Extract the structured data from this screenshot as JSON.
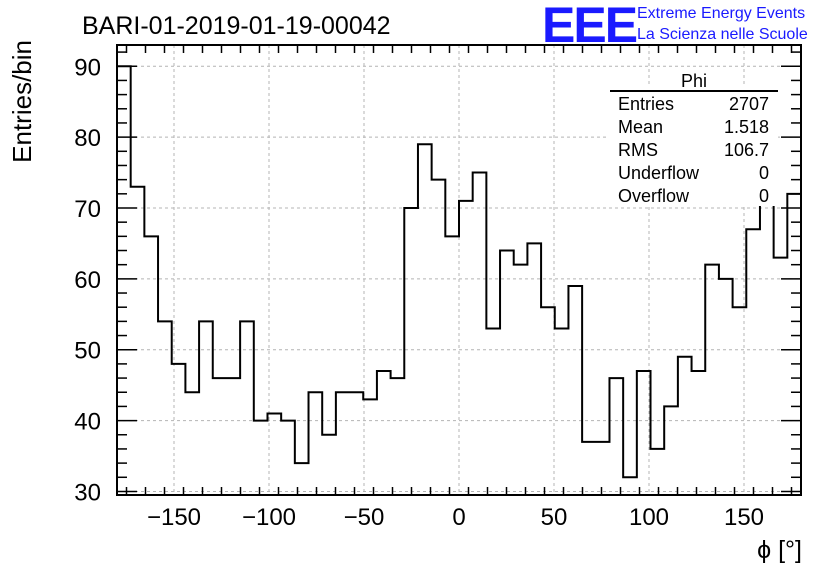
{
  "header": {
    "run_title": "BARI-01-2019-01-19-00042",
    "logo_text": "EEE",
    "logo_line1": "Extreme Energy Events",
    "logo_line2": "La Scienza nelle Scuole"
  },
  "stats_box": {
    "title": "Phi",
    "rows": [
      {
        "label": "Entries",
        "value": "2707"
      },
      {
        "label": "Mean",
        "value": "1.518"
      },
      {
        "label": "RMS",
        "value": "106.7"
      },
      {
        "label": "Underflow",
        "value": "0"
      },
      {
        "label": "Overflow",
        "value": "0"
      }
    ]
  },
  "colors": {
    "logo": "#1a1aff",
    "line": "#000000",
    "grid": "#bbbbbb"
  },
  "chart_data": {
    "type": "bar",
    "histogram": true,
    "title": "BARI-01-2019-01-19-00042",
    "xlabel": "ϕ [°]",
    "ylabel": "Entries/bin",
    "xlim": [
      -180,
      180
    ],
    "ylim": [
      29.5,
      93
    ],
    "bin_width": 7.2,
    "bin_start": -180,
    "values": [
      90,
      73,
      66,
      54,
      48,
      44,
      54,
      46,
      46,
      54,
      40,
      41,
      40,
      34,
      44,
      38,
      44,
      44,
      43,
      47,
      46,
      70,
      79,
      74,
      66,
      71,
      75,
      53,
      64,
      62,
      65,
      56,
      53,
      59,
      37,
      37,
      46,
      32,
      47,
      36,
      42,
      49,
      47,
      62,
      60,
      56,
      67,
      71,
      63,
      72
    ],
    "xticks": [
      -150,
      -100,
      -50,
      0,
      50,
      100,
      150
    ],
    "xtick_labels": [
      "−150",
      "−100",
      "−50",
      "0",
      "50",
      "100",
      "150"
    ],
    "yticks": [
      30,
      40,
      50,
      60,
      70,
      80,
      90
    ],
    "ytick_labels": [
      "30",
      "40",
      "50",
      "60",
      "70",
      "80",
      "90"
    ],
    "grid": true,
    "legend": "top-right stats box"
  }
}
